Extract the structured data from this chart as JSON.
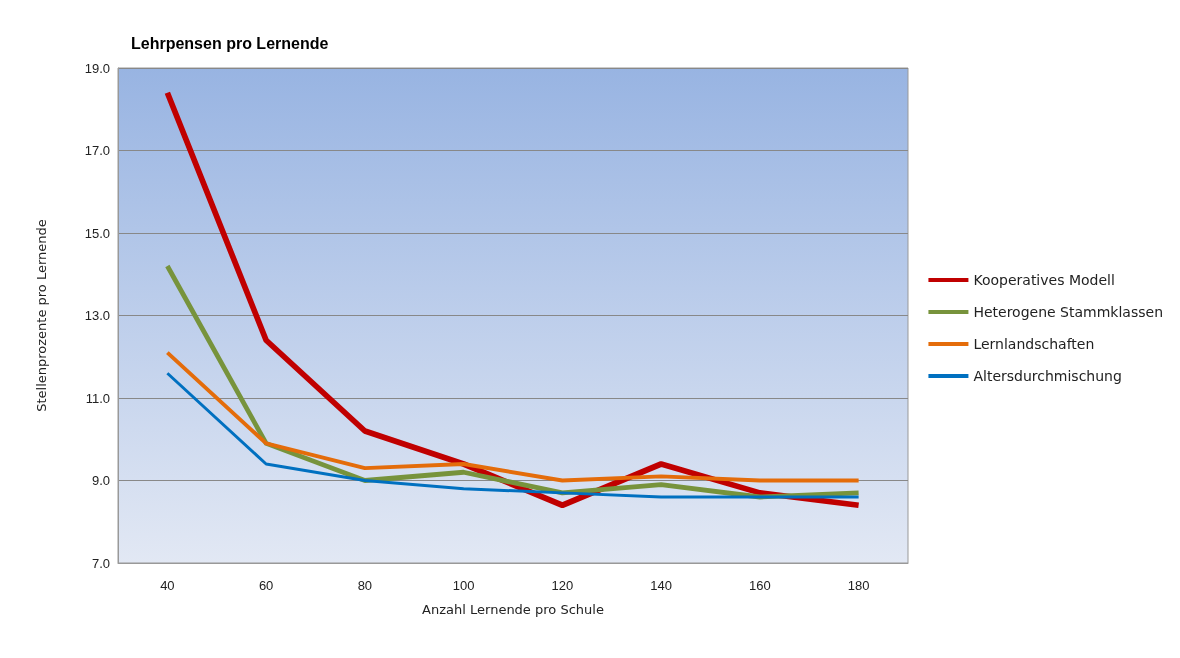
{
  "chart_data": {
    "type": "line",
    "title": "Lehrpensen pro Lernende",
    "xlabel": "Anzahl Lernende pro Schule",
    "ylabel": "Stellenprozente pro Lernende",
    "categories": [
      "40",
      "60",
      "80",
      "100",
      "120",
      "140",
      "160",
      "180"
    ],
    "series": [
      {
        "name": "Kooperatives Modell",
        "color": "#c00000",
        "values": [
          18.4,
          12.4,
          10.2,
          9.4,
          8.4,
          9.4,
          8.7,
          8.4
        ]
      },
      {
        "name": "Heterogene Stammklassen",
        "color": "#77933c",
        "values": [
          14.2,
          9.9,
          9.0,
          9.2,
          8.7,
          8.9,
          8.6,
          8.7
        ]
      },
      {
        "name": "Lernlandschaften",
        "color": "#e46c0a",
        "values": [
          12.1,
          9.9,
          9.3,
          9.4,
          9.0,
          9.1,
          9.0,
          9.0
        ]
      },
      {
        "name": "Altersdurchmischung",
        "color": "#0070c0",
        "values": [
          11.6,
          9.4,
          9.0,
          8.8,
          8.7,
          8.6,
          8.6,
          8.6
        ]
      }
    ],
    "ylim": [
      7,
      19
    ],
    "yticks": [
      {
        "value": 7,
        "label": "7.0"
      },
      {
        "value": 9,
        "label": "9.0"
      },
      {
        "value": 11,
        "label": "11.0"
      },
      {
        "value": 13,
        "label": "13.0"
      },
      {
        "value": 15,
        "label": "15.0"
      },
      {
        "value": 17,
        "label": "17.0"
      },
      {
        "value": 19,
        "label": "19.0"
      }
    ],
    "grid": "y",
    "legend": "right",
    "marker": "none",
    "line_style": "solid"
  }
}
